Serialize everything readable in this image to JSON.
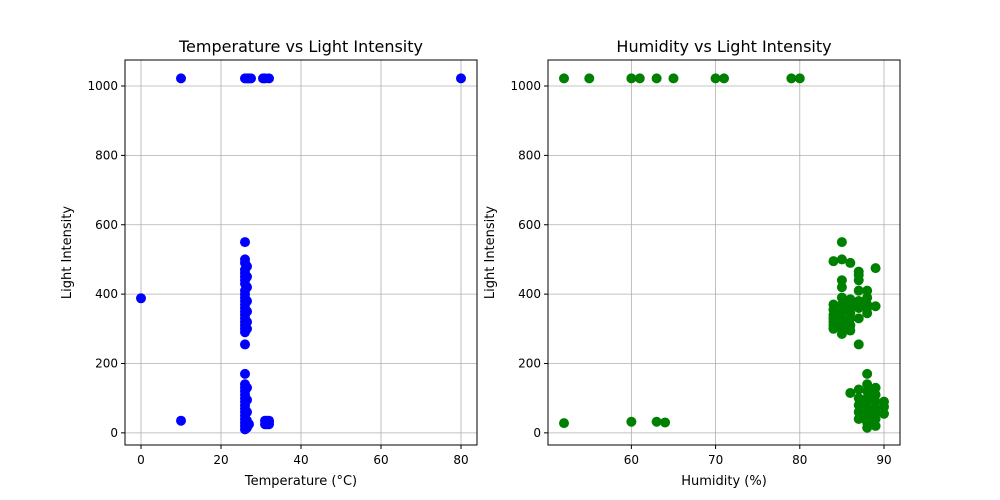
{
  "chart_data": [
    {
      "type": "scatter",
      "title": "Temperature vs Light Intensity",
      "xlabel": "Temperature (°C)",
      "ylabel": "Light Intensity",
      "xlim": [
        -4,
        84
      ],
      "ylim": [
        -35,
        1075
      ],
      "xticks": [
        0,
        20,
        40,
        60,
        80
      ],
      "yticks": [
        0,
        200,
        400,
        600,
        800,
        1000
      ],
      "grid": true,
      "color": "#0000ff",
      "points": [
        [
          0,
          388
        ],
        [
          10,
          1022
        ],
        [
          10,
          35
        ],
        [
          80,
          1022
        ],
        [
          26,
          1022
        ],
        [
          26.5,
          1022
        ],
        [
          27,
          1022
        ],
        [
          27.5,
          1022
        ],
        [
          30.5,
          1022
        ],
        [
          31,
          1022
        ],
        [
          32,
          1022
        ],
        [
          26,
          550
        ],
        [
          26,
          500
        ],
        [
          26,
          490
        ],
        [
          26,
          470
        ],
        [
          26,
          460
        ],
        [
          26,
          450
        ],
        [
          26,
          440
        ],
        [
          26,
          430
        ],
        [
          26,
          410
        ],
        [
          26,
          400
        ],
        [
          26,
          390
        ],
        [
          26,
          380
        ],
        [
          26,
          370
        ],
        [
          26,
          360
        ],
        [
          26,
          350
        ],
        [
          26,
          340
        ],
        [
          26,
          330
        ],
        [
          26,
          320
        ],
        [
          26,
          310
        ],
        [
          26,
          300
        ],
        [
          26,
          290
        ],
        [
          26,
          255
        ],
        [
          26.5,
          480
        ],
        [
          26.5,
          450
        ],
        [
          26.5,
          420
        ],
        [
          26.5,
          380
        ],
        [
          26.5,
          350
        ],
        [
          26.5,
          320
        ],
        [
          26.5,
          300
        ],
        [
          26,
          170
        ],
        [
          26,
          140
        ],
        [
          26,
          130
        ],
        [
          26,
          120
        ],
        [
          26,
          110
        ],
        [
          26,
          100
        ],
        [
          26,
          90
        ],
        [
          26,
          80
        ],
        [
          26,
          70
        ],
        [
          26,
          60
        ],
        [
          26,
          50
        ],
        [
          26,
          40
        ],
        [
          26,
          30
        ],
        [
          26,
          20
        ],
        [
          26,
          10
        ],
        [
          26.5,
          130
        ],
        [
          26.5,
          95
        ],
        [
          26.5,
          60
        ],
        [
          26.5,
          35
        ],
        [
          26.5,
          15
        ],
        [
          27,
          25
        ],
        [
          31,
          35
        ],
        [
          31,
          25
        ],
        [
          31.5,
          35
        ],
        [
          31.5,
          25
        ],
        [
          32,
          35
        ],
        [
          32,
          25
        ],
        [
          32,
          30
        ]
      ]
    },
    {
      "type": "scatter",
      "title": "Humidity vs Light Intensity",
      "xlabel": "Humidity (%)",
      "ylabel": "Light Intensity",
      "xlim": [
        50.1,
        91.9
      ],
      "ylim": [
        -35,
        1075
      ],
      "xticks": [
        60,
        70,
        80,
        90
      ],
      "yticks": [
        0,
        200,
        400,
        600,
        800,
        1000
      ],
      "grid": true,
      "color": "#008000",
      "points": [
        [
          52,
          1022
        ],
        [
          55,
          1022
        ],
        [
          60,
          1022
        ],
        [
          61,
          1022
        ],
        [
          63,
          1022
        ],
        [
          65,
          1022
        ],
        [
          70,
          1022
        ],
        [
          71,
          1022
        ],
        [
          79,
          1022
        ],
        [
          80,
          1022
        ],
        [
          52,
          28
        ],
        [
          60,
          32
        ],
        [
          63,
          32
        ],
        [
          64,
          30
        ],
        [
          84,
          495
        ],
        [
          84,
          370
        ],
        [
          84,
          355
        ],
        [
          84,
          340
        ],
        [
          84,
          330
        ],
        [
          84,
          320
        ],
        [
          84,
          310
        ],
        [
          84,
          300
        ],
        [
          85,
          550
        ],
        [
          85,
          500
        ],
        [
          85,
          440
        ],
        [
          85,
          420
        ],
        [
          85,
          390
        ],
        [
          85,
          370
        ],
        [
          85,
          350
        ],
        [
          85,
          330
        ],
        [
          85,
          320
        ],
        [
          85,
          300
        ],
        [
          85,
          285
        ],
        [
          86,
          490
        ],
        [
          86,
          385
        ],
        [
          86,
          370
        ],
        [
          86,
          360
        ],
        [
          86,
          345
        ],
        [
          86,
          330
        ],
        [
          86,
          310
        ],
        [
          86,
          295
        ],
        [
          87,
          465
        ],
        [
          87,
          455
        ],
        [
          87,
          440
        ],
        [
          87,
          410
        ],
        [
          87,
          380
        ],
        [
          87,
          360
        ],
        [
          87,
          330
        ],
        [
          87,
          255
        ],
        [
          88,
          410
        ],
        [
          88,
          390
        ],
        [
          88,
          370
        ],
        [
          88,
          360
        ],
        [
          88,
          345
        ],
        [
          89,
          475
        ],
        [
          89,
          365
        ],
        [
          86,
          115
        ],
        [
          87,
          125
        ],
        [
          87,
          100
        ],
        [
          87,
          80
        ],
        [
          87,
          60
        ],
        [
          87,
          40
        ],
        [
          88,
          170
        ],
        [
          88,
          140
        ],
        [
          88,
          120
        ],
        [
          88,
          100
        ],
        [
          88,
          90
        ],
        [
          88,
          75
        ],
        [
          88,
          60
        ],
        [
          88,
          45
        ],
        [
          88,
          30
        ],
        [
          88,
          15
        ],
        [
          89,
          130
        ],
        [
          89,
          110
        ],
        [
          89,
          90
        ],
        [
          89,
          70
        ],
        [
          89,
          55
        ],
        [
          89,
          40
        ],
        [
          89,
          20
        ],
        [
          90,
          90
        ],
        [
          90,
          75
        ],
        [
          90,
          55
        ]
      ]
    }
  ]
}
